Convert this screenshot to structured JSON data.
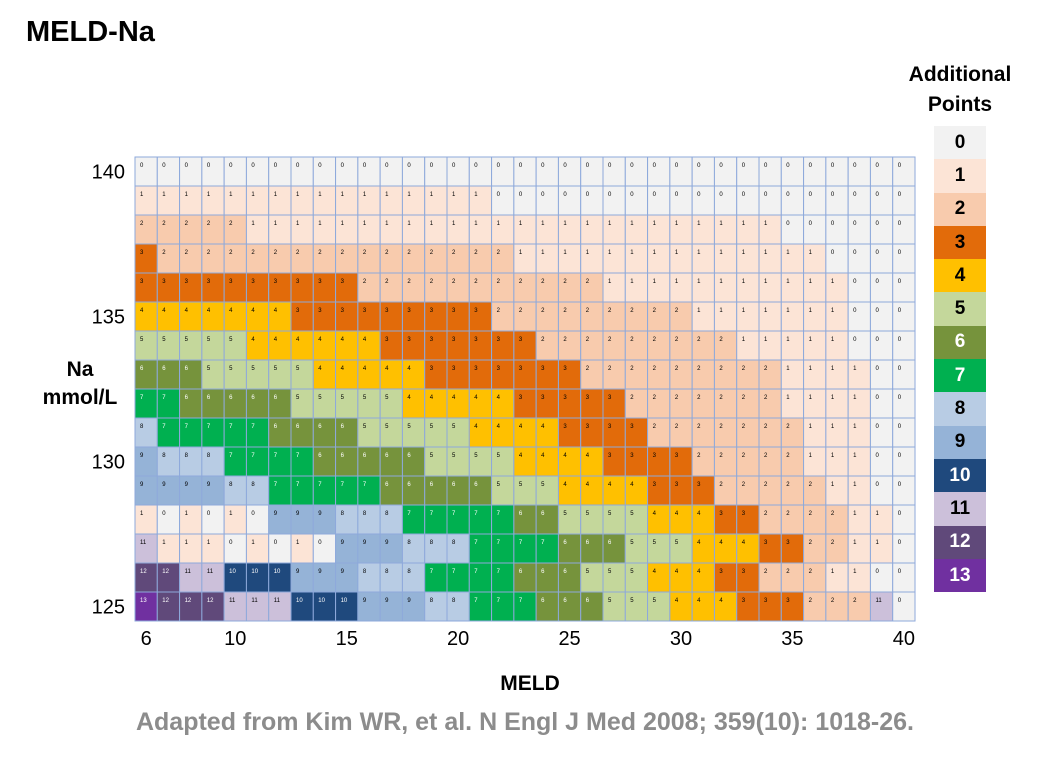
{
  "title": "MELD-Na",
  "source": "Adapted from Kim WR, et al. N Engl J Med 2008; 359(10): 1018-26.",
  "legend": {
    "title_lines": [
      "Additional",
      "Points"
    ],
    "items": [
      {
        "label": "0",
        "color": "#f2f2f2",
        "text_color": "#000000"
      },
      {
        "label": "1",
        "color": "#fce4d6",
        "text_color": "#000000"
      },
      {
        "label": "2",
        "color": "#f8cbad",
        "text_color": "#000000"
      },
      {
        "label": "3",
        "color": "#e26b0a",
        "text_color": "#000000"
      },
      {
        "label": "4",
        "color": "#ffc000",
        "text_color": "#000000"
      },
      {
        "label": "5",
        "color": "#c4d79b",
        "text_color": "#000000"
      },
      {
        "label": "6",
        "color": "#76933c",
        "text_color": "#ffffff"
      },
      {
        "label": "7",
        "color": "#00b050",
        "text_color": "#ffffff"
      },
      {
        "label": "8",
        "color": "#b8cce4",
        "text_color": "#000000"
      },
      {
        "label": "9",
        "color": "#95b3d7",
        "text_color": "#000000"
      },
      {
        "label": "10",
        "color": "#1f497d",
        "text_color": "#ffffff"
      },
      {
        "label": "11",
        "color": "#ccc0da",
        "text_color": "#000000"
      },
      {
        "label": "12",
        "color": "#60497a",
        "text_color": "#ffffff"
      },
      {
        "label": "13",
        "color": "#7030a0",
        "text_color": "#ffffff"
      }
    ]
  },
  "chart_data": {
    "type": "heatmap",
    "title": "MELD-Na",
    "xlabel": "MELD",
    "ylabel_lines": [
      "Na",
      "mmol/L"
    ],
    "x_values": [
      6,
      7,
      8,
      9,
      10,
      11,
      12,
      13,
      14,
      15,
      16,
      17,
      18,
      19,
      20,
      21,
      22,
      23,
      24,
      25,
      26,
      27,
      28,
      29,
      30,
      31,
      32,
      33,
      34,
      35,
      36,
      37,
      38,
      39,
      40
    ],
    "y_values": [
      140,
      139,
      138,
      137,
      136,
      135,
      134,
      133,
      132,
      131,
      130,
      129,
      128,
      127,
      126,
      125
    ],
    "x_ticks": [
      6,
      10,
      15,
      20,
      25,
      30,
      35,
      40
    ],
    "y_ticks": [
      140,
      135,
      130,
      125
    ],
    "grid": true,
    "legend_placement": "right",
    "row_values": [
      "00000000000000000000000000000000000",
      "11111111111111110000000000000000000",
      "22222111111111111111111111111000000",
      "32222222222222222111111111111110000",
      "33333333332222222222211111111111000",
      "44444443333333332222222221111111000",
      "55555444444333333322222222211111000",
      "66655555444443333333222222222111100",
      "77666665555544444333332222222111100",
      "87777766665555544443333222222211100",
      "98887777666665555444433332222211100",
      "99998877777666665554444333222221100",
      "10101099988877777665555444332222110",
      "111110101099988877776665554443322110",
      "121211111010109998887777666555444332221100",
      "131212121111111010109998877766655544433322211000"
    ]
  }
}
